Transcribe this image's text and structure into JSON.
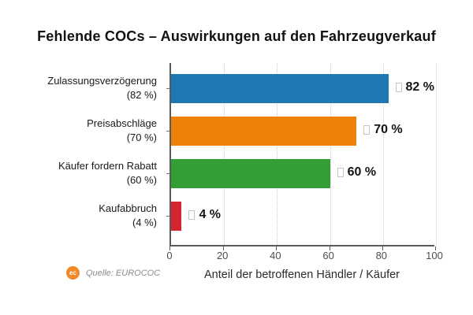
{
  "title": "Fehlende COCs – Auswirkungen auf den Fahrzeugverkauf",
  "chart_data": {
    "type": "bar",
    "orientation": "horizontal",
    "title": "Fehlende COCs – Auswirkungen auf den Fahrzeugverkauf",
    "categories": [
      "Zulassungsverzögerung",
      "Preisabschläge",
      "Käufer fordern Rabatt",
      "Kaufabbruch"
    ],
    "category_sublabels": [
      "(82 %)",
      "(70 %)",
      "(60 %)",
      "(4 %)"
    ],
    "values": [
      82,
      70,
      60,
      4
    ],
    "value_labels": [
      "82 %",
      "70 %",
      "60 %",
      "4 %"
    ],
    "bar_colors": [
      "#1f77b4",
      "#ee810a",
      "#339e35",
      "#d32430"
    ],
    "value_marker": "tofu-box-glyph",
    "xlabel": "Anteil der betroffenen Händler / Käufer",
    "ylabel": "",
    "xlim": [
      0,
      100
    ],
    "x_ticks": [
      0,
      20,
      40,
      60,
      80,
      100
    ],
    "grid": "vertical-dotted",
    "legend": "none"
  },
  "footer": {
    "source_label": "Quelle: EUROCOC",
    "logo_icon": "eurococ-logo",
    "logo_text": "ec"
  }
}
